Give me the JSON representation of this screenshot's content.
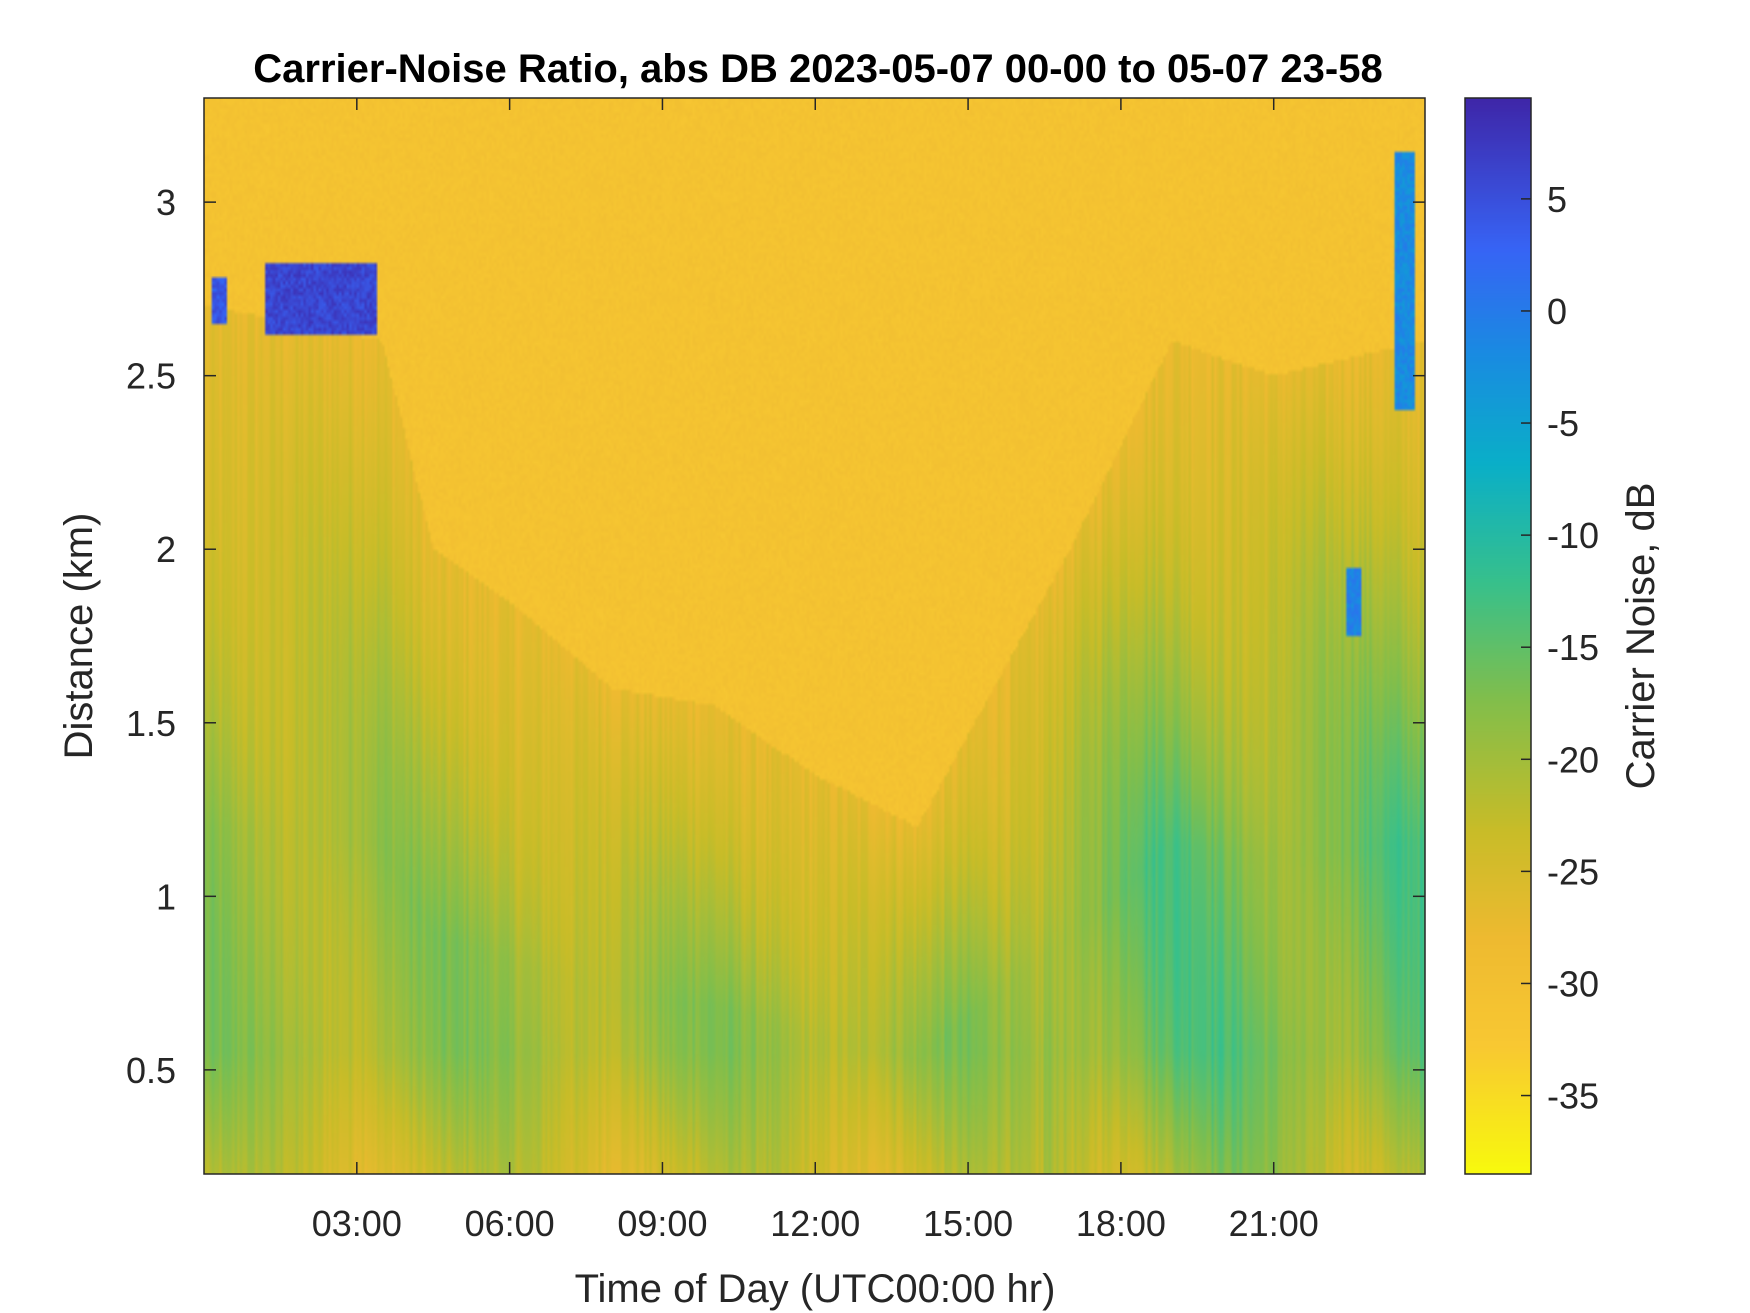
{
  "chart_data": {
    "type": "heatmap",
    "title": "Carrier-Noise Ratio, abs DB 2023-05-07 00-00 to 05-07 23-58",
    "xlabel": "Time of Day (UTC00:00 hr)",
    "ylabel": "Distance (km)",
    "colorbar_label": "Carrier Noise, dB",
    "colormap": "parula (reversed: yellow = low, dark blue = high)",
    "xlim": [
      0,
      23.97
    ],
    "ylim": [
      0.2,
      3.3
    ],
    "clim": [
      -38.5,
      9.5
    ],
    "x_ticks": [
      3,
      6,
      9,
      12,
      15,
      18,
      21
    ],
    "x_tick_labels": [
      "03:00",
      "06:00",
      "09:00",
      "12:00",
      "15:00",
      "18:00",
      "21:00"
    ],
    "y_ticks": [
      0.5,
      1,
      1.5,
      2,
      2.5,
      3
    ],
    "y_tick_labels": [
      "0.5",
      "1",
      "1.5",
      "2",
      "2.5",
      "3"
    ],
    "colorbar_ticks": [
      5,
      0,
      -5,
      -10,
      -15,
      -20,
      -25,
      -30,
      -35
    ],
    "colorbar_tick_labels": [
      "5",
      "0",
      "-5",
      "-10",
      "-15",
      "-20",
      "-25",
      "-30",
      "-35"
    ],
    "background_value_db": -31,
    "boundary_layer_top_km": [
      {
        "x": 0,
        "y": 2.7
      },
      {
        "x": 2,
        "y": 2.65
      },
      {
        "x": 3.5,
        "y": 2.6
      },
      {
        "x": 4.5,
        "y": 2.0
      },
      {
        "x": 6,
        "y": 1.85
      },
      {
        "x": 8,
        "y": 1.6
      },
      {
        "x": 10,
        "y": 1.55
      },
      {
        "x": 12,
        "y": 1.35
      },
      {
        "x": 14,
        "y": 1.2
      },
      {
        "x": 15.5,
        "y": 1.6
      },
      {
        "x": 17,
        "y": 2.0
      },
      {
        "x": 19,
        "y": 2.6
      },
      {
        "x": 21,
        "y": 2.5
      },
      {
        "x": 23.9,
        "y": 2.6
      }
    ],
    "features": [
      {
        "name": "cloud-early",
        "x_range": [
          1.2,
          3.4
        ],
        "y_range": [
          2.62,
          2.82
        ],
        "value_db": 6
      },
      {
        "name": "cloud-edge",
        "x_range": [
          0.15,
          0.45
        ],
        "y_range": [
          2.65,
          2.78
        ],
        "value_db": 4
      },
      {
        "name": "streak-late",
        "x_range": [
          23.35,
          23.75
        ],
        "y_range": [
          2.4,
          3.15
        ],
        "value_db": -2
      },
      {
        "name": "patch-22h",
        "x_range": [
          22.4,
          22.7
        ],
        "y_range": [
          1.75,
          1.95
        ],
        "value_db": -1
      }
    ]
  }
}
